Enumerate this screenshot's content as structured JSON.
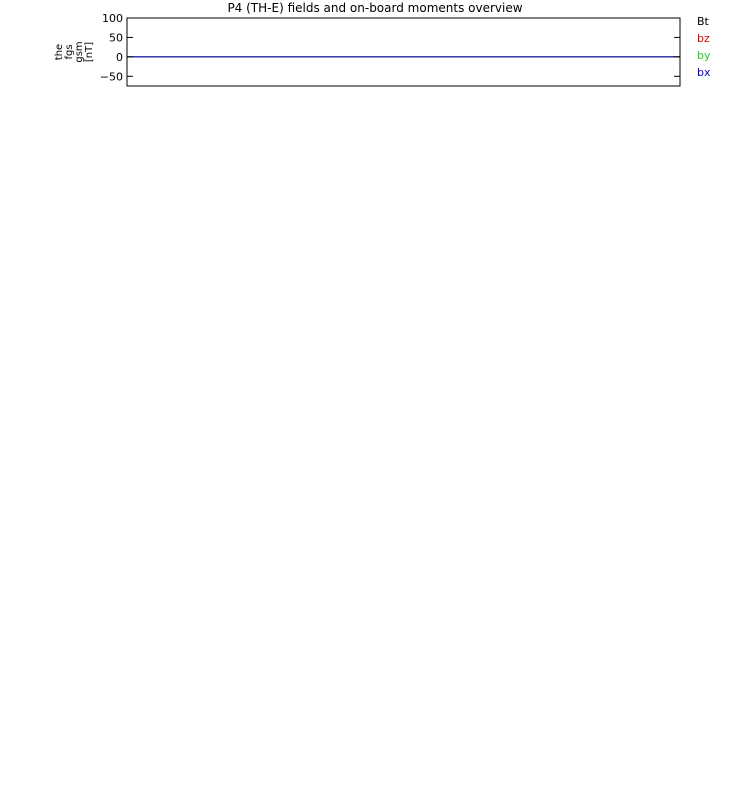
{
  "title": "P4 (TH-E) fields and on-board moments overview",
  "chart_data": [
    {
      "type": "line",
      "ylabel": [
        "the",
        "fgs",
        "gsm",
        "[nT]"
      ],
      "ylim": [
        -75,
        100
      ],
      "yticks": [
        100,
        50,
        0,
        -50
      ],
      "yticklabels": [
        "100",
        "50",
        "0",
        "−50"
      ],
      "series": [
        {
          "name": "Bt",
          "color": "#000000",
          "x": [
            0,
            1
          ],
          "y": [
            0,
            0
          ]
        },
        {
          "name": "bz",
          "color": "#e00000",
          "x": [
            0,
            1
          ],
          "y": [
            0,
            0
          ]
        },
        {
          "name": "by",
          "color": "#22cc22",
          "x": [
            0,
            1
          ],
          "y": [
            0,
            0
          ]
        },
        {
          "name": "bx",
          "color": "#0000cc",
          "x": [
            0,
            1
          ],
          "y": [
            0,
            0
          ]
        }
      ]
    }
  ]
}
